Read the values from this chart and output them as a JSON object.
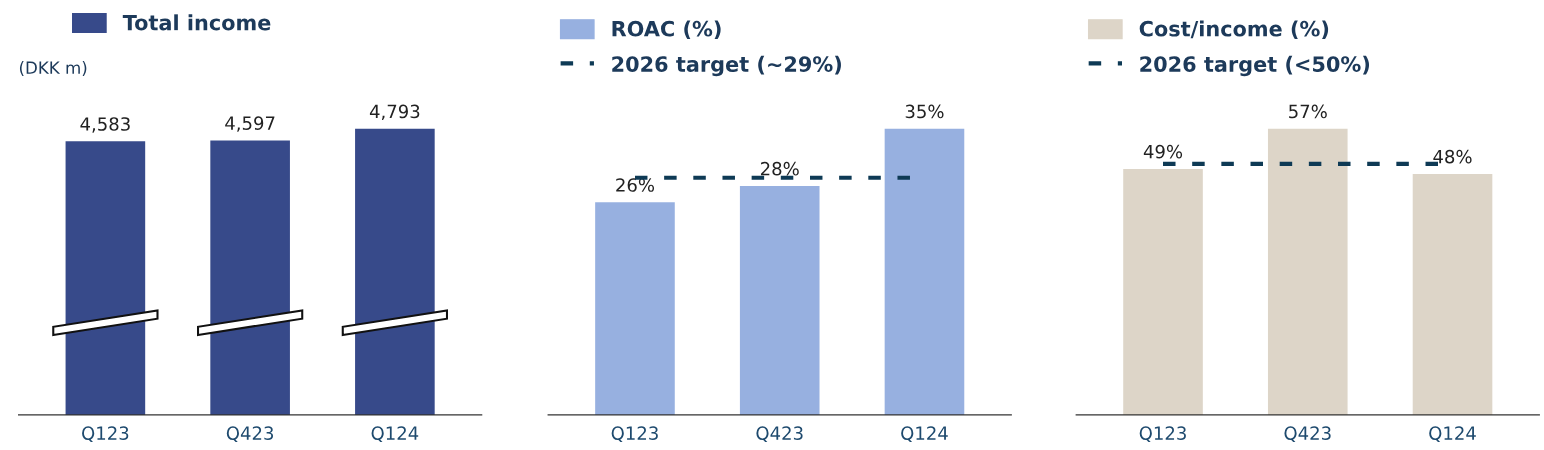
{
  "chart_data": [
    {
      "type": "bar",
      "categories": [
        "Q123",
        "Q423",
        "Q124"
      ],
      "series": [
        {
          "name": "Total income",
          "color": "#374a8a",
          "values": [
            4583,
            4597,
            4793
          ],
          "value_labels": [
            "4,583",
            "4,597",
            "4,793"
          ]
        }
      ],
      "annotations": [
        "(DKK m)"
      ],
      "legend": "top left",
      "tick_labels": "x"
    },
    {
      "type": "bar",
      "categories": [
        "Q123",
        "Q423",
        "Q124"
      ],
      "series": [
        {
          "name": "ROAC (%)",
          "color": "#97b0e0",
          "values": [
            26,
            28,
            35
          ],
          "value_labels": [
            "26%",
            "28%",
            "35%"
          ]
        }
      ],
      "ref_lines": [
        {
          "axis": "y",
          "value": 29,
          "label": "2026 target (~29%)",
          "color": "#0e3a55",
          "line_style": "dashed"
        }
      ],
      "legend": "top left",
      "tick_labels": "x"
    },
    {
      "type": "bar",
      "categories": [
        "Q123",
        "Q423",
        "Q124"
      ],
      "series": [
        {
          "name": "Cost/income (%)",
          "color": "#ddd5c8",
          "values": [
            49,
            57,
            48
          ],
          "value_labels": [
            "49%",
            "57%",
            "48%"
          ]
        }
      ],
      "ref_lines": [
        {
          "axis": "y",
          "value": 50,
          "label": "2026 target (<50%)",
          "color": "#0e3a55",
          "line_style": "dashed"
        }
      ],
      "legend": "top left",
      "tick_labels": "x"
    }
  ]
}
